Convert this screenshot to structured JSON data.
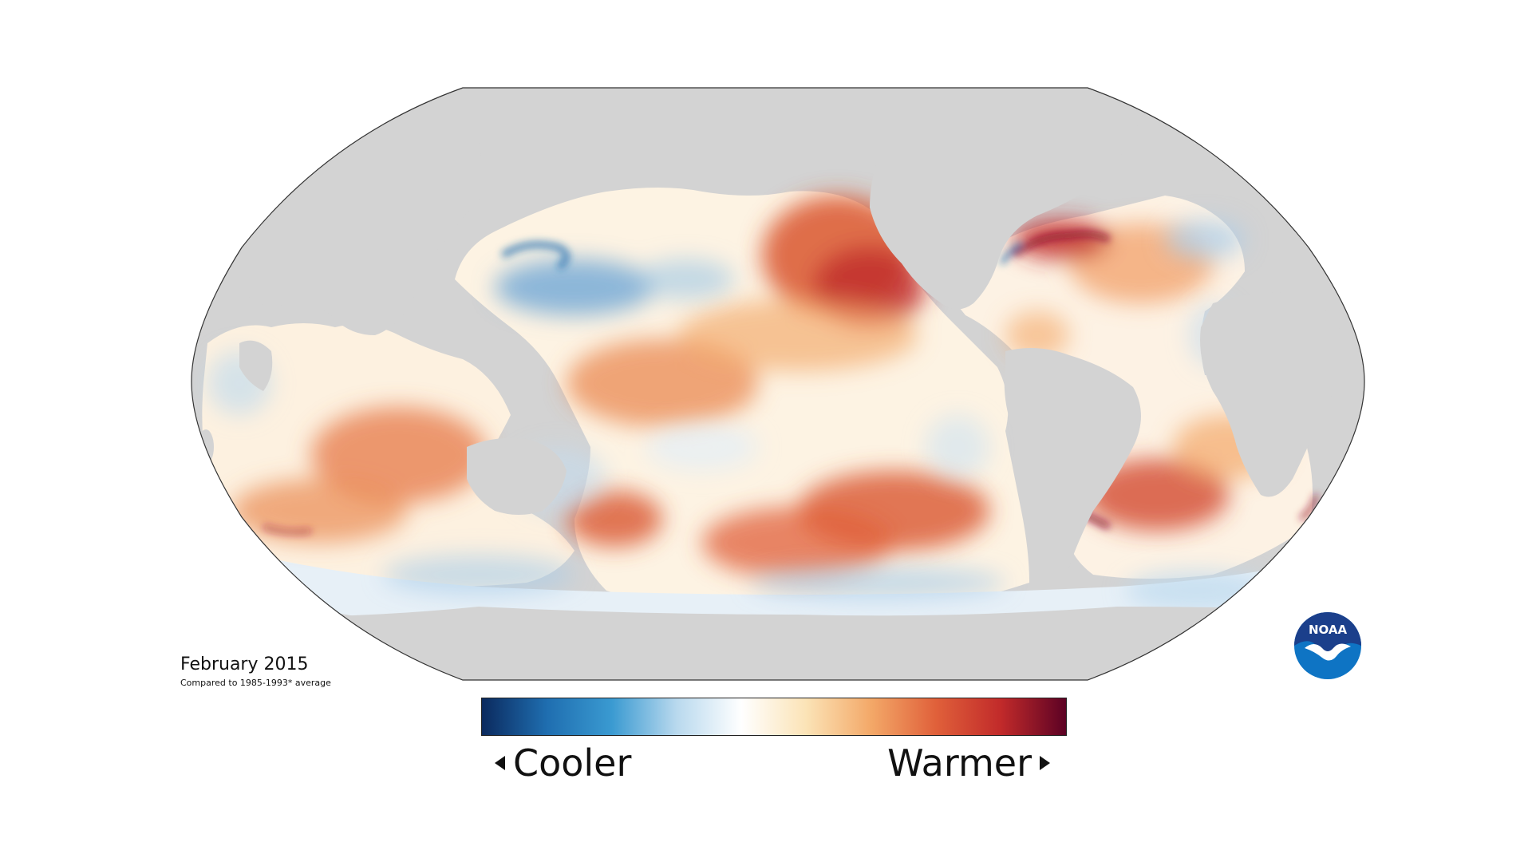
{
  "map": {
    "date": "February 2015",
    "baseline": "Compared to 1985-1993* average",
    "colors": {
      "land": "#d3d3d3",
      "outline": "#333333",
      "ocean_neutral": "#fdfcf6"
    }
  },
  "legend": {
    "left_label": "Cooler",
    "right_label": "Warmer",
    "gradient": [
      "#0b2a5e",
      "#1f6eb0",
      "#3a9ad1",
      "#b9d9ee",
      "#ffffff",
      "#fbe3b6",
      "#f3a868",
      "#e0603a",
      "#c12a2a",
      "#5c0224"
    ],
    "left_arrow_icon": "triangle-left-icon",
    "right_arrow_icon": "triangle-right-icon"
  },
  "logo": {
    "text": "NOAA",
    "icon": "noaa-logo-icon",
    "colors": {
      "navy": "#1b3f8b",
      "blue": "#0e74c4",
      "white": "#ffffff"
    }
  }
}
